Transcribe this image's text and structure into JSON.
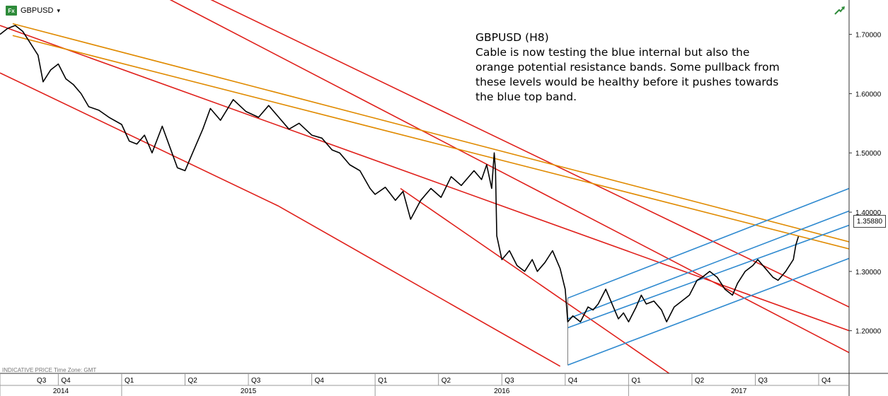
{
  "header": {
    "symbol": "GBPUSD",
    "badge": "Fx",
    "caret": "▾"
  },
  "annotation": {
    "title": "GBPUSD (H8)",
    "text": "Cable is now testing the blue internal but also the orange potential resistance bands. Some pullback from these levels would be healthy before it pushes towards the blue top band."
  },
  "footer_note": "INDICATIVE PRICE   Time Zone: GMT",
  "current_price": "1.35880",
  "colors": {
    "price": "#000000",
    "red": "#e0201b",
    "orange": "#e08a00",
    "blue": "#2f8ad0",
    "axis": "#333333",
    "badge": "#2e8b3a"
  },
  "icons": {
    "status": "trend-up-icon"
  },
  "chart_data": {
    "type": "line",
    "y_ticks": [
      "1.70000",
      "1.60000",
      "1.50000",
      "1.40000",
      "1.30000",
      "1.20000"
    ],
    "ylim": [
      1.128,
      1.758
    ],
    "xlim": [
      2014.52,
      2017.87
    ],
    "quarters": [
      {
        "label": "Q3",
        "t": 2014.5
      },
      {
        "label": "Q4",
        "t": 2014.75
      },
      {
        "label": "Q1",
        "t": 2015.0
      },
      {
        "label": "Q2",
        "t": 2015.25
      },
      {
        "label": "Q3",
        "t": 2015.5
      },
      {
        "label": "Q4",
        "t": 2015.75
      },
      {
        "label": "Q1",
        "t": 2016.0
      },
      {
        "label": "Q2",
        "t": 2016.25
      },
      {
        "label": "Q3",
        "t": 2016.5
      },
      {
        "label": "Q4",
        "t": 2016.75
      },
      {
        "label": "Q1",
        "t": 2017.0
      },
      {
        "label": "Q2",
        "t": 2017.25
      },
      {
        "label": "Q3",
        "t": 2017.5
      },
      {
        "label": "Q4",
        "t": 2017.75
      }
    ],
    "years": [
      {
        "label": "2014",
        "t": 2014.5
      },
      {
        "label": "2015",
        "t": 2015.0
      },
      {
        "label": "2016",
        "t": 2016.0
      },
      {
        "label": "2017",
        "t": 2017.0
      }
    ],
    "series": [
      {
        "values": [
          [
            2014.52,
            1.7
          ],
          [
            2014.55,
            1.71
          ],
          [
            2014.58,
            1.715
          ],
          [
            2014.61,
            1.705
          ],
          [
            2014.64,
            1.685
          ],
          [
            2014.67,
            1.665
          ],
          [
            2014.69,
            1.62
          ],
          [
            2014.72,
            1.64
          ],
          [
            2014.75,
            1.65
          ],
          [
            2014.78,
            1.625
          ],
          [
            2014.81,
            1.615
          ],
          [
            2014.84,
            1.6
          ],
          [
            2014.87,
            1.578
          ],
          [
            2014.91,
            1.572
          ],
          [
            2014.95,
            1.56
          ],
          [
            2015.0,
            1.548
          ],
          [
            2015.03,
            1.52
          ],
          [
            2015.06,
            1.515
          ],
          [
            2015.09,
            1.53
          ],
          [
            2015.12,
            1.5
          ],
          [
            2015.16,
            1.545
          ],
          [
            2015.19,
            1.51
          ],
          [
            2015.22,
            1.475
          ],
          [
            2015.25,
            1.47
          ],
          [
            2015.28,
            1.5
          ],
          [
            2015.32,
            1.54
          ],
          [
            2015.35,
            1.575
          ],
          [
            2015.39,
            1.555
          ],
          [
            2015.44,
            1.59
          ],
          [
            2015.49,
            1.57
          ],
          [
            2015.54,
            1.56
          ],
          [
            2015.58,
            1.58
          ],
          [
            2015.62,
            1.56
          ],
          [
            2015.66,
            1.54
          ],
          [
            2015.7,
            1.55
          ],
          [
            2015.75,
            1.53
          ],
          [
            2015.79,
            1.525
          ],
          [
            2015.83,
            1.505
          ],
          [
            2015.86,
            1.5
          ],
          [
            2015.9,
            1.48
          ],
          [
            2015.94,
            1.47
          ],
          [
            2015.98,
            1.44
          ],
          [
            2016.0,
            1.43
          ],
          [
            2016.04,
            1.442
          ],
          [
            2016.08,
            1.42
          ],
          [
            2016.11,
            1.435
          ],
          [
            2016.14,
            1.388
          ],
          [
            2016.18,
            1.42
          ],
          [
            2016.22,
            1.44
          ],
          [
            2016.26,
            1.425
          ],
          [
            2016.3,
            1.46
          ],
          [
            2016.34,
            1.445
          ],
          [
            2016.39,
            1.47
          ],
          [
            2016.42,
            1.455
          ],
          [
            2016.44,
            1.48
          ],
          [
            2016.46,
            1.44
          ],
          [
            2016.47,
            1.5
          ],
          [
            2016.475,
            1.47
          ],
          [
            2016.48,
            1.36
          ],
          [
            2016.5,
            1.32
          ],
          [
            2016.53,
            1.335
          ],
          [
            2016.56,
            1.31
          ],
          [
            2016.59,
            1.3
          ],
          [
            2016.62,
            1.32
          ],
          [
            2016.64,
            1.3
          ],
          [
            2016.67,
            1.315
          ],
          [
            2016.7,
            1.335
          ],
          [
            2016.73,
            1.305
          ],
          [
            2016.75,
            1.27
          ],
          [
            2016.76,
            1.215
          ],
          [
            2016.78,
            1.225
          ],
          [
            2016.81,
            1.215
          ],
          [
            2016.84,
            1.24
          ],
          [
            2016.86,
            1.235
          ],
          [
            2016.88,
            1.245
          ],
          [
            2016.91,
            1.27
          ],
          [
            2016.93,
            1.25
          ],
          [
            2016.96,
            1.22
          ],
          [
            2016.98,
            1.23
          ],
          [
            2017.0,
            1.215
          ],
          [
            2017.03,
            1.24
          ],
          [
            2017.05,
            1.26
          ],
          [
            2017.07,
            1.245
          ],
          [
            2017.1,
            1.25
          ],
          [
            2017.13,
            1.235
          ],
          [
            2017.15,
            1.215
          ],
          [
            2017.18,
            1.24
          ],
          [
            2017.21,
            1.25
          ],
          [
            2017.24,
            1.26
          ],
          [
            2017.27,
            1.285
          ],
          [
            2017.29,
            1.29
          ],
          [
            2017.32,
            1.3
          ],
          [
            2017.35,
            1.29
          ],
          [
            2017.38,
            1.27
          ],
          [
            2017.41,
            1.26
          ],
          [
            2017.43,
            1.28
          ],
          [
            2017.46,
            1.3
          ],
          [
            2017.49,
            1.31
          ],
          [
            2017.51,
            1.32
          ],
          [
            2017.54,
            1.305
          ],
          [
            2017.57,
            1.29
          ],
          [
            2017.59,
            1.285
          ],
          [
            2017.62,
            1.3
          ],
          [
            2017.65,
            1.32
          ],
          [
            2017.66,
            1.345
          ],
          [
            2017.67,
            1.359
          ]
        ]
      }
    ],
    "trendlines": [
      {
        "color": "red",
        "from": [
          2014.52,
          1.715
        ],
        "to": [
          2017.87,
          1.2
        ]
      },
      {
        "color": "red",
        "from": [
          2014.52,
          1.635
        ],
        "to": [
          2015.62,
          1.41
        ]
      },
      {
        "color": "red",
        "from": [
          2015.62,
          1.41
        ],
        "to": [
          2016.73,
          1.14
        ]
      },
      {
        "color": "red",
        "from": [
          2015.05,
          1.79
        ],
        "to": [
          2017.87,
          1.163
        ]
      },
      {
        "color": "red",
        "from": [
          2015.2,
          1.79
        ],
        "to": [
          2017.87,
          1.24
        ]
      },
      {
        "color": "red",
        "from": [
          2016.1,
          1.44
        ],
        "to": [
          2017.16,
          1.128
        ]
      },
      {
        "color": "orange",
        "from": [
          2014.57,
          1.718
        ],
        "to": [
          2017.87,
          1.35
        ]
      },
      {
        "color": "orange",
        "from": [
          2014.57,
          1.698
        ],
        "to": [
          2017.87,
          1.338
        ]
      },
      {
        "color": "blue",
        "from": [
          2016.76,
          1.255
        ],
        "to": [
          2017.87,
          1.44
        ]
      },
      {
        "color": "blue",
        "from": [
          2016.76,
          1.22
        ],
        "to": [
          2017.87,
          1.402
        ]
      },
      {
        "color": "blue",
        "from": [
          2016.76,
          1.205
        ],
        "to": [
          2017.87,
          1.378
        ]
      },
      {
        "color": "blue",
        "from": [
          2016.76,
          1.142
        ],
        "to": [
          2017.87,
          1.322
        ]
      },
      {
        "color": "gray",
        "from": [
          2016.76,
          1.142
        ],
        "to": [
          2016.76,
          1.255
        ]
      }
    ]
  }
}
